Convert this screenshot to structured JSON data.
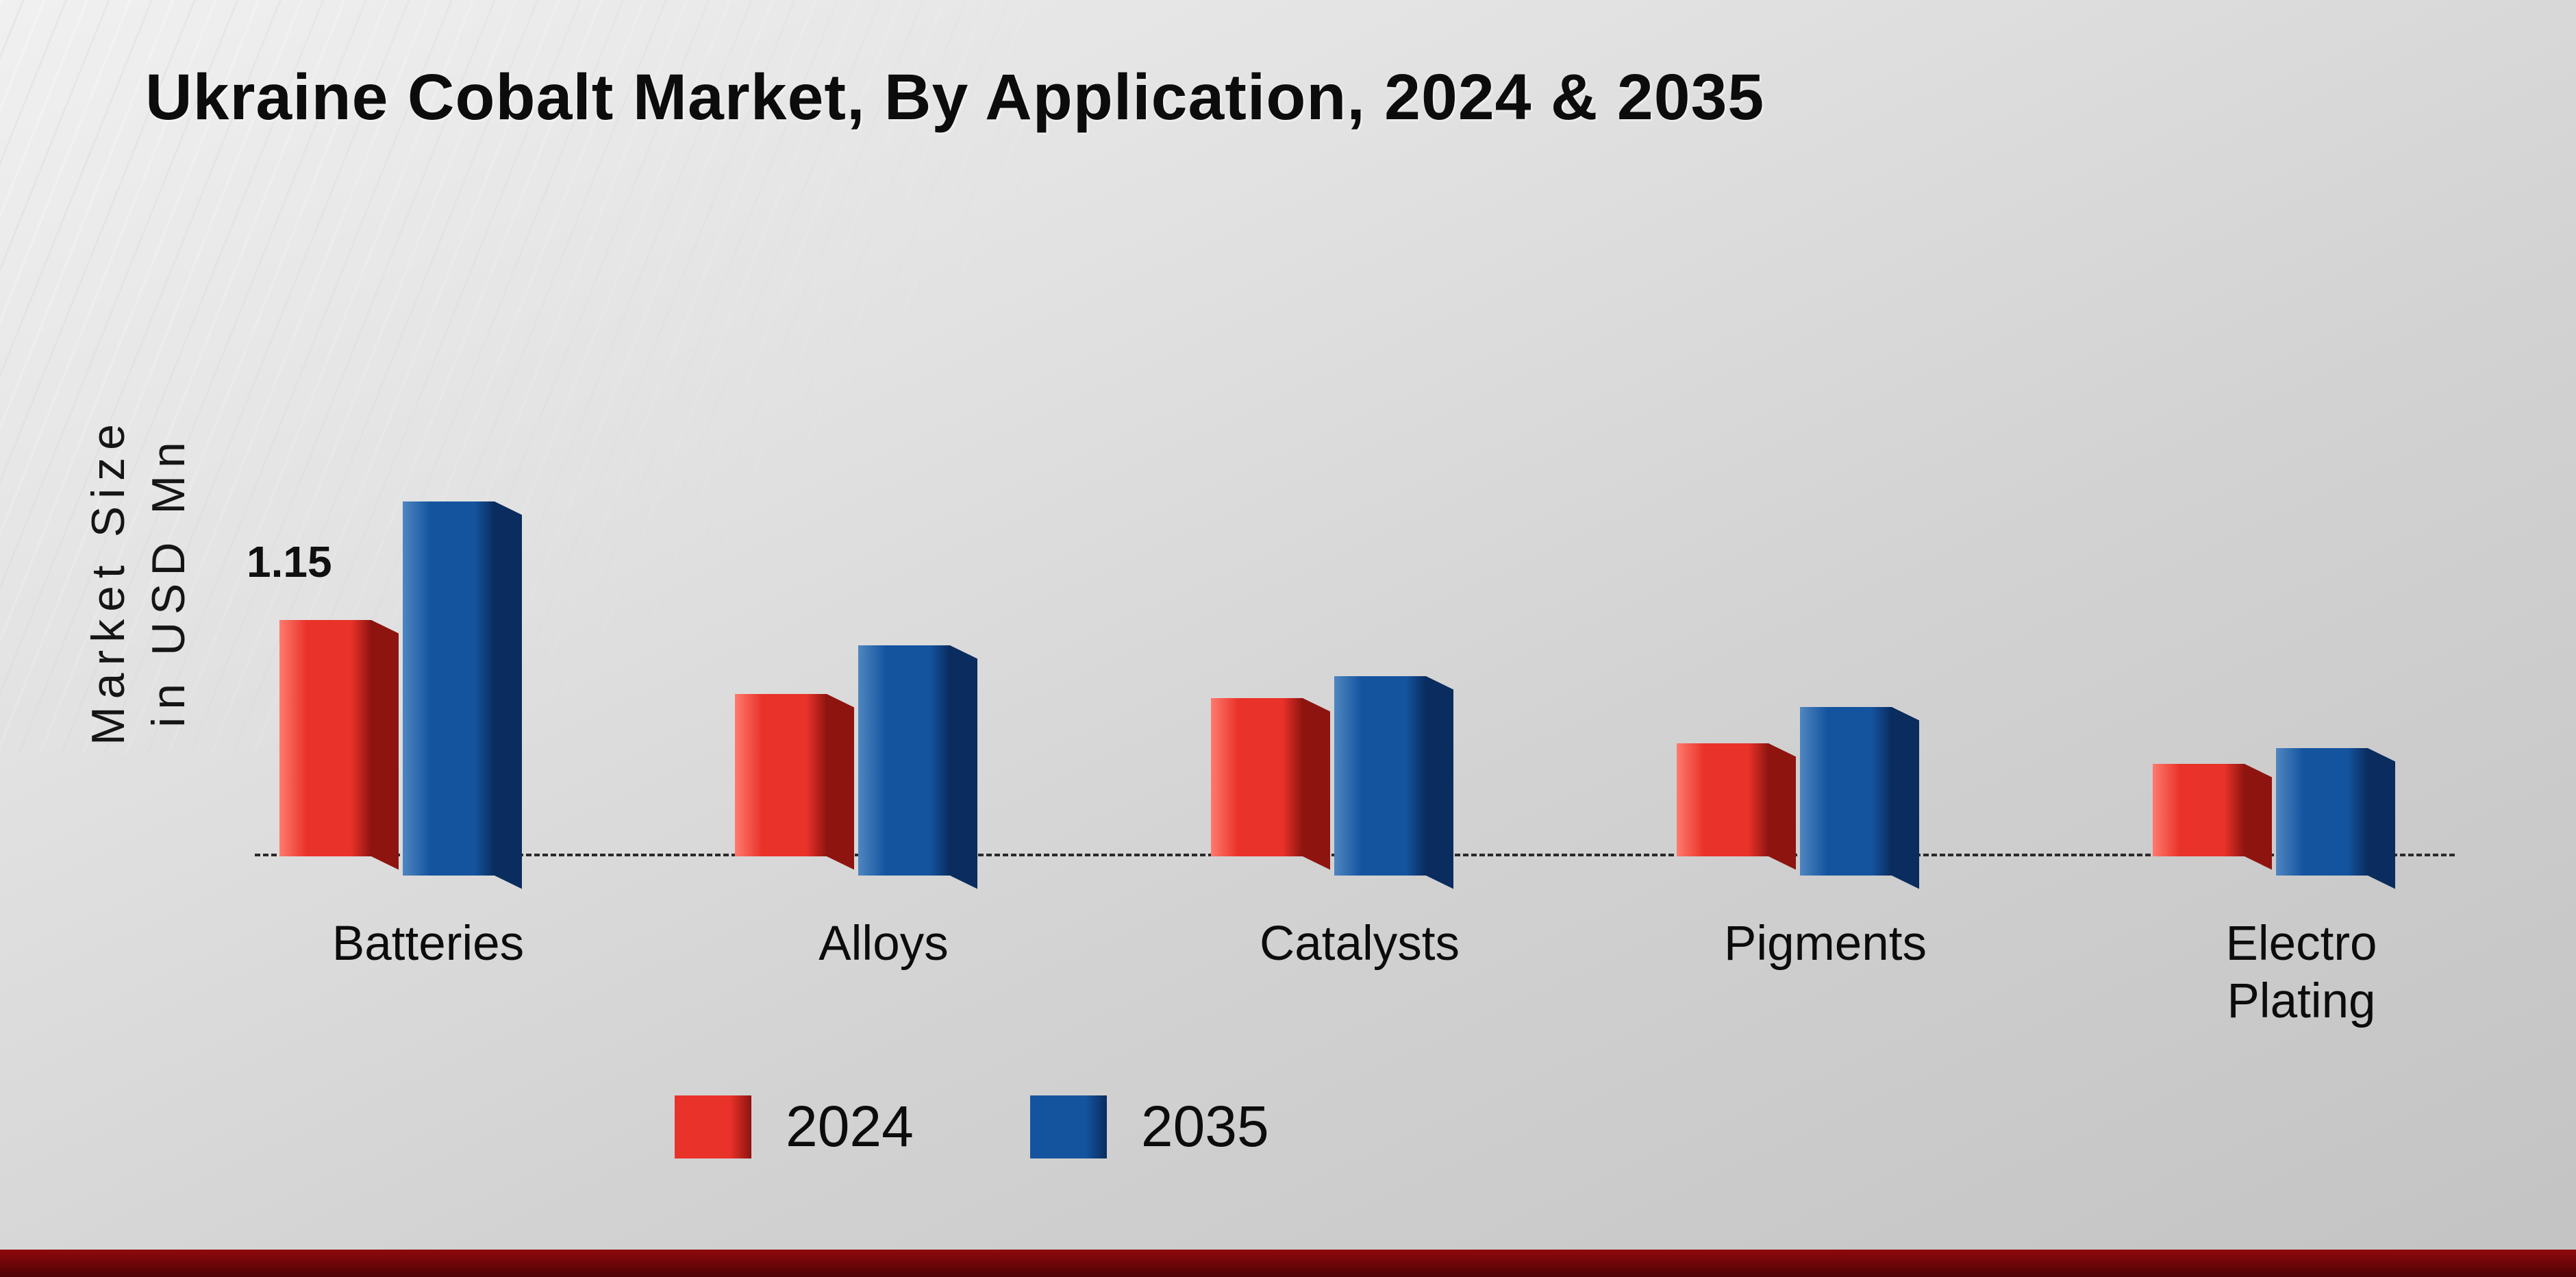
{
  "title": "Ukraine Cobalt Market, By Application, 2024 & 2035",
  "y_axis": {
    "line1": "Market Size",
    "line2": "in USD Mn"
  },
  "chart_data": {
    "type": "bar",
    "title": "Ukraine Cobalt Market, By Application, 2024 & 2035",
    "categories": [
      "Batteries",
      "Alloys",
      "Catalysts",
      "Pigments",
      "Electro Plating"
    ],
    "series": [
      {
        "name": "2024",
        "color": "#e93229",
        "color_light": "#ff7a6e",
        "color_dark": "#8e1410",
        "values": [
          1.15,
          0.79,
          0.77,
          0.55,
          0.45
        ]
      },
      {
        "name": "2035",
        "color": "#14549f",
        "color_light": "#4f86c0",
        "color_dark": "#0a2c5e",
        "values": [
          1.82,
          1.12,
          0.97,
          0.82,
          0.62
        ]
      }
    ],
    "data_labels": [
      {
        "series": "2024",
        "category": "Batteries",
        "text": "1.15"
      }
    ],
    "xlabel": "",
    "ylabel": "Market Size in USD Mn",
    "ylim": [
      0,
      2.2
    ],
    "grid": false,
    "legend_position": "bottom",
    "baseline_style": "dashed"
  },
  "legend": {
    "items": [
      {
        "label": "2024",
        "color": "#e93229",
        "color_dark": "#8e1410"
      },
      {
        "label": "2035",
        "color": "#14549f",
        "color_dark": "#0a2c5e"
      }
    ]
  },
  "colors": {
    "background_top": "#f0f0f0",
    "background_bottom": "#c3c3c3",
    "bottom_band": "#8f090d",
    "baseline": "#2a2a2a",
    "title_text": "#0c0c0c"
  }
}
